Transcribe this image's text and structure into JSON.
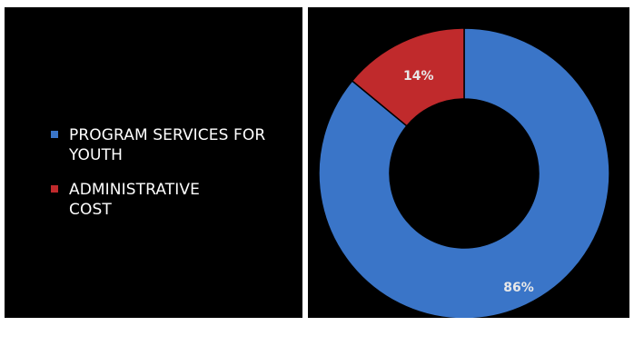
{
  "colors": {
    "program": "#3a75c8",
    "admin": "#c02a2c",
    "background": "#000000",
    "text": "#ffffff"
  },
  "chart_data": {
    "type": "pie",
    "donut": true,
    "slices": [
      {
        "label": "PROGRAM SERVICES FOR YOUTH",
        "value": 86,
        "display": "86%",
        "color": "#3a75c8"
      },
      {
        "label": "ADMINISTRATIVE COST",
        "value": 14,
        "display": "14%",
        "color": "#c02a2c"
      }
    ],
    "legend_position": "left"
  },
  "legend": {
    "items": [
      {
        "line1": "PROGRAM SERVICES FOR",
        "line2": "YOUTH"
      },
      {
        "line1": "ADMINISTRATIVE",
        "line2": "COST"
      }
    ]
  }
}
